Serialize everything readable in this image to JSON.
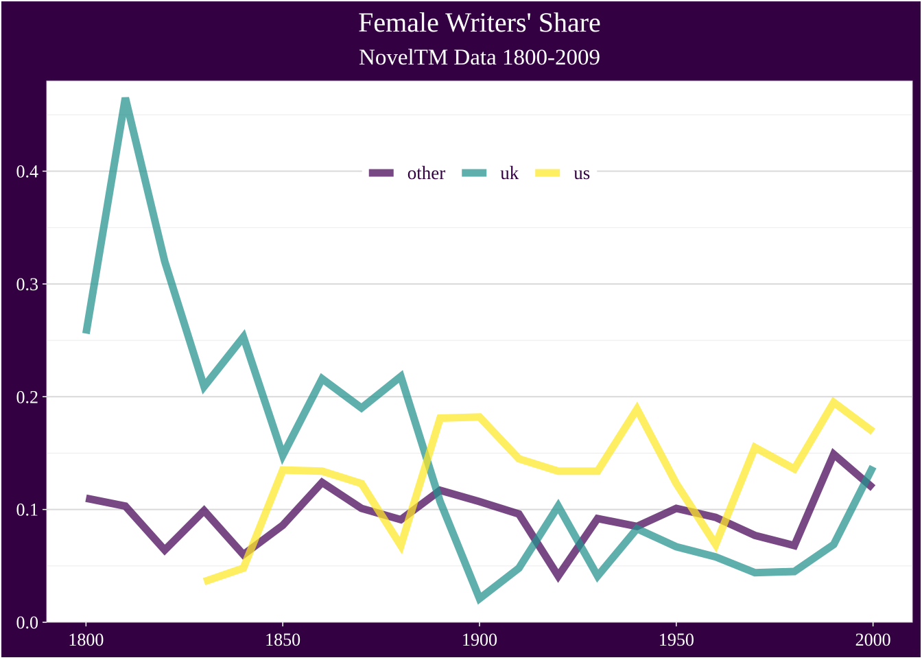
{
  "chart_data": {
    "type": "line",
    "title": "Female Writers' Share",
    "subtitle": "NovelTM Data 1800-2009",
    "xlabel": "",
    "ylabel": "",
    "x": [
      1800,
      1810,
      1820,
      1830,
      1840,
      1850,
      1860,
      1870,
      1880,
      1890,
      1900,
      1910,
      1920,
      1930,
      1940,
      1950,
      1960,
      1970,
      1980,
      1990,
      2000
    ],
    "xlim": [
      1790,
      2010
    ],
    "ylim": [
      0,
      0.48
    ],
    "x_ticks": [
      1800,
      1850,
      1900,
      1950,
      2000
    ],
    "y_ticks": [
      0.0,
      0.1,
      0.2,
      0.3,
      0.4
    ],
    "y_tick_labels": [
      "0.0",
      "0.1",
      "0.2",
      "0.3",
      "0.4"
    ],
    "grid": true,
    "legend_position": "top-center",
    "background": "#330041",
    "panel_background": "#ffffff",
    "series": [
      {
        "name": "other",
        "color": "#440154",
        "values": [
          0.11,
          0.103,
          0.064,
          0.099,
          0.06,
          0.086,
          0.124,
          0.101,
          0.091,
          0.117,
          0.107,
          0.096,
          0.041,
          0.092,
          0.085,
          0.101,
          0.093,
          0.077,
          0.068,
          0.149,
          0.119
        ]
      },
      {
        "name": "uk",
        "color": "#21908C",
        "values": [
          0.256,
          0.465,
          0.32,
          0.209,
          0.253,
          0.148,
          0.216,
          0.19,
          0.218,
          0.107,
          0.021,
          0.048,
          0.103,
          0.041,
          0.083,
          0.067,
          0.058,
          0.044,
          0.045,
          0.069,
          0.138
        ]
      },
      {
        "name": "us",
        "color": "#FDE725",
        "values": [
          null,
          null,
          null,
          0.036,
          0.048,
          0.135,
          0.134,
          0.123,
          0.068,
          0.181,
          0.182,
          0.145,
          0.134,
          0.134,
          0.189,
          0.123,
          0.069,
          0.155,
          0.136,
          0.195,
          0.169
        ]
      }
    ]
  }
}
